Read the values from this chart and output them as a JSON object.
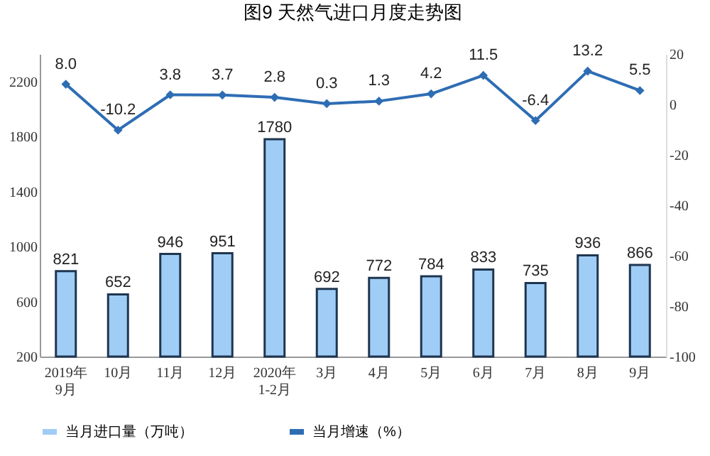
{
  "chart_data": {
    "type": "bar",
    "title": "图9  天然气进口月度走势图",
    "categories": [
      "2019年\n9月",
      "10月",
      "11月",
      "12月",
      "2020年\n1-2月",
      "3月",
      "4月",
      "5月",
      "6月",
      "7月",
      "8月",
      "9月"
    ],
    "series": [
      {
        "name": "当月进口量（万吨）",
        "color": "#9fcdf5",
        "values": [
          821,
          652,
          946,
          951,
          1780,
          692,
          772,
          784,
          833,
          735,
          936,
          866
        ]
      },
      {
        "name": "当月增速（%）",
        "type": "line",
        "axis": "y2",
        "color": "#2e6db4",
        "values": [
          8.0,
          -10.2,
          3.8,
          3.7,
          2.8,
          0.3,
          1.3,
          4.2,
          11.5,
          -6.4,
          13.2,
          5.5
        ],
        "value_labels": [
          "8.0",
          "-10.2",
          "3.8",
          "3.7",
          "2.8",
          "0.3",
          "1.3",
          "4.2",
          "11.5",
          "-6.4",
          "13.2",
          "5.5"
        ]
      }
    ],
    "ylim": [
      200,
      2400
    ],
    "yticks": [
      200,
      600,
      1000,
      1400,
      1800,
      2200
    ],
    "y2lim": [
      -100,
      20
    ],
    "y2ticks": [
      -100,
      -80,
      -60,
      -40,
      -20,
      0,
      20
    ],
    "data_labels": true,
    "legend": "bottom",
    "grid": false,
    "marker": "diamond",
    "line_style": "solid"
  }
}
